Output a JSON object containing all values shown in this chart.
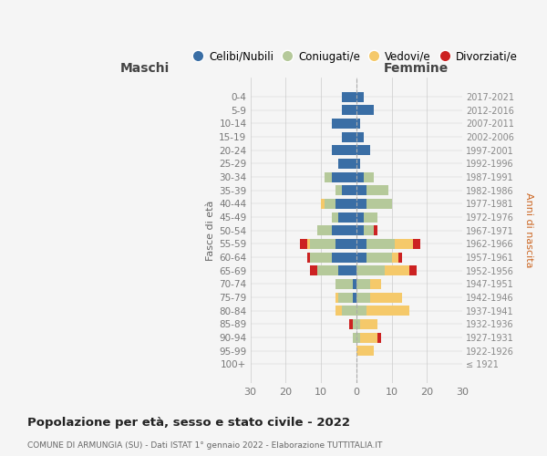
{
  "age_groups": [
    "100+",
    "95-99",
    "90-94",
    "85-89",
    "80-84",
    "75-79",
    "70-74",
    "65-69",
    "60-64",
    "55-59",
    "50-54",
    "45-49",
    "40-44",
    "35-39",
    "30-34",
    "25-29",
    "20-24",
    "15-19",
    "10-14",
    "5-9",
    "0-4"
  ],
  "birth_years": [
    "≤ 1921",
    "1922-1926",
    "1927-1931",
    "1932-1936",
    "1937-1941",
    "1942-1946",
    "1947-1951",
    "1952-1956",
    "1957-1961",
    "1962-1966",
    "1967-1971",
    "1972-1976",
    "1977-1981",
    "1982-1986",
    "1987-1991",
    "1992-1996",
    "1997-2001",
    "2002-2006",
    "2007-2011",
    "2012-2016",
    "2017-2021"
  ],
  "maschi": {
    "celibi": [
      0,
      0,
      0,
      0,
      0,
      1,
      1,
      5,
      7,
      6,
      7,
      5,
      6,
      4,
      7,
      5,
      7,
      4,
      7,
      4,
      4
    ],
    "coniugati": [
      0,
      0,
      1,
      1,
      4,
      4,
      5,
      6,
      6,
      7,
      4,
      2,
      3,
      2,
      2,
      0,
      0,
      0,
      0,
      0,
      0
    ],
    "vedovi": [
      0,
      0,
      0,
      0,
      2,
      1,
      0,
      0,
      0,
      1,
      0,
      0,
      1,
      0,
      0,
      0,
      0,
      0,
      0,
      0,
      0
    ],
    "divorziati": [
      0,
      0,
      0,
      1,
      0,
      0,
      0,
      2,
      1,
      2,
      0,
      0,
      0,
      0,
      0,
      0,
      0,
      0,
      0,
      0,
      0
    ]
  },
  "femmine": {
    "nubili": [
      0,
      0,
      0,
      0,
      0,
      0,
      0,
      0,
      3,
      3,
      2,
      2,
      3,
      3,
      2,
      1,
      4,
      2,
      1,
      5,
      2
    ],
    "coniugate": [
      0,
      0,
      1,
      1,
      3,
      4,
      4,
      8,
      7,
      8,
      3,
      4,
      7,
      6,
      3,
      0,
      0,
      0,
      0,
      0,
      0
    ],
    "vedove": [
      0,
      5,
      5,
      5,
      12,
      9,
      3,
      7,
      2,
      5,
      0,
      0,
      0,
      0,
      0,
      0,
      0,
      0,
      0,
      0,
      0
    ],
    "divorziate": [
      0,
      0,
      1,
      0,
      0,
      0,
      0,
      2,
      1,
      2,
      1,
      0,
      0,
      0,
      0,
      0,
      0,
      0,
      0,
      0,
      0
    ]
  },
  "colors": {
    "celibi": "#3a6ea5",
    "coniugati": "#b5c99a",
    "vedovi": "#f5c96a",
    "divorziati": "#cc2222"
  },
  "xlim": 30,
  "title": "Popolazione per età, sesso e stato civile - 2022",
  "subtitle": "COMUNE DI ARMUNGIA (SU) - Dati ISTAT 1° gennaio 2022 - Elaborazione TUTTITALIA.IT",
  "ylabel_left": "Fasce di età",
  "ylabel_right": "Anni di nascita",
  "xlabel_left": "Maschi",
  "xlabel_right": "Femmine",
  "bg_color": "#f5f5f5",
  "bar_height": 0.75,
  "figsize": [
    6.0,
    5.0
  ],
  "dpi": 100
}
